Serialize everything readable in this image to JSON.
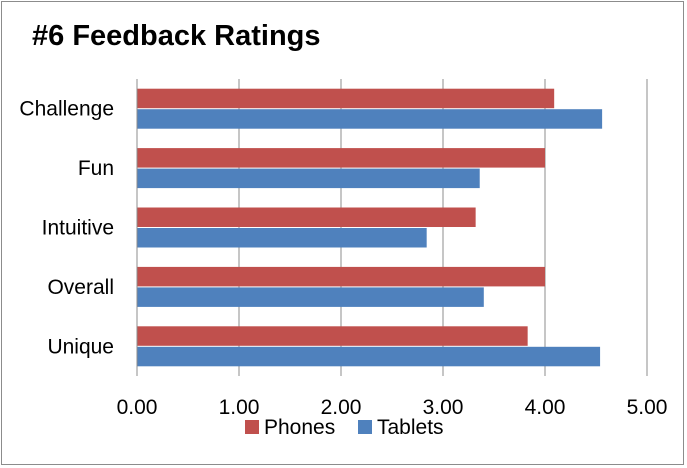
{
  "chart_data": {
    "type": "bar",
    "orientation": "horizontal",
    "title": "#6 Feedback Ratings",
    "categories": [
      "Challenge",
      "Fun",
      "Intuitive",
      "Overall",
      "Unique"
    ],
    "series": [
      {
        "name": "Phones",
        "color": "#c0504d",
        "values": [
          4.09,
          4.0,
          3.32,
          4.0,
          3.83
        ]
      },
      {
        "name": "Tablets",
        "color": "#4f81bd",
        "values": [
          4.56,
          3.36,
          2.84,
          3.4,
          4.54
        ]
      }
    ],
    "xlim": [
      0,
      5
    ],
    "xticks": [
      "0.00",
      "1.00",
      "2.00",
      "3.00",
      "4.00",
      "5.00"
    ],
    "grid": "vertical",
    "legend": "bottom"
  }
}
